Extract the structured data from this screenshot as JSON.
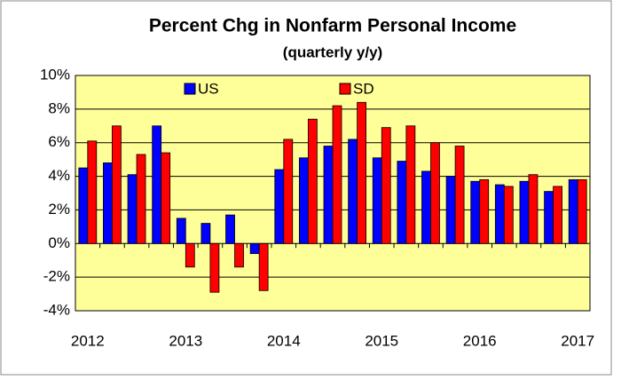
{
  "chart_data": {
    "type": "bar",
    "title": "Percent Chg in Nonfarm Personal Income",
    "subtitle": "(quarterly y/y)",
    "categories": [
      "2012",
      null,
      null,
      null,
      "2013",
      null,
      null,
      null,
      "2014",
      null,
      null,
      null,
      "2015",
      null,
      null,
      null,
      "2016",
      null,
      null,
      null,
      "2017"
    ],
    "series": [
      {
        "name": "US",
        "color": "#0000ff",
        "values": [
          4.5,
          4.8,
          4.1,
          7.0,
          1.5,
          1.2,
          1.7,
          -0.6,
          4.4,
          5.1,
          5.8,
          6.2,
          5.1,
          4.9,
          4.3,
          4.0,
          3.7,
          3.5,
          3.7,
          3.1,
          3.8
        ]
      },
      {
        "name": "SD",
        "color": "#ff0000",
        "values": [
          6.1,
          7.0,
          5.3,
          5.4,
          -1.4,
          -2.9,
          -1.4,
          -2.8,
          6.2,
          7.4,
          8.2,
          8.4,
          6.9,
          7.0,
          6.0,
          5.8,
          3.8,
          3.4,
          4.1,
          3.4,
          3.8
        ]
      }
    ],
    "ylim": [
      -4,
      10
    ],
    "yticks": [
      {
        "value": -4,
        "label": "-4%"
      },
      {
        "value": -2,
        "label": "-2%"
      },
      {
        "value": 0,
        "label": "0%"
      },
      {
        "value": 2,
        "label": "2%"
      },
      {
        "value": 4,
        "label": "4%"
      },
      {
        "value": 6,
        "label": "6%"
      },
      {
        "value": 8,
        "label": "8%"
      },
      {
        "value": 10,
        "label": "10%"
      }
    ],
    "grid": true,
    "plot_background": "#ffff99"
  }
}
